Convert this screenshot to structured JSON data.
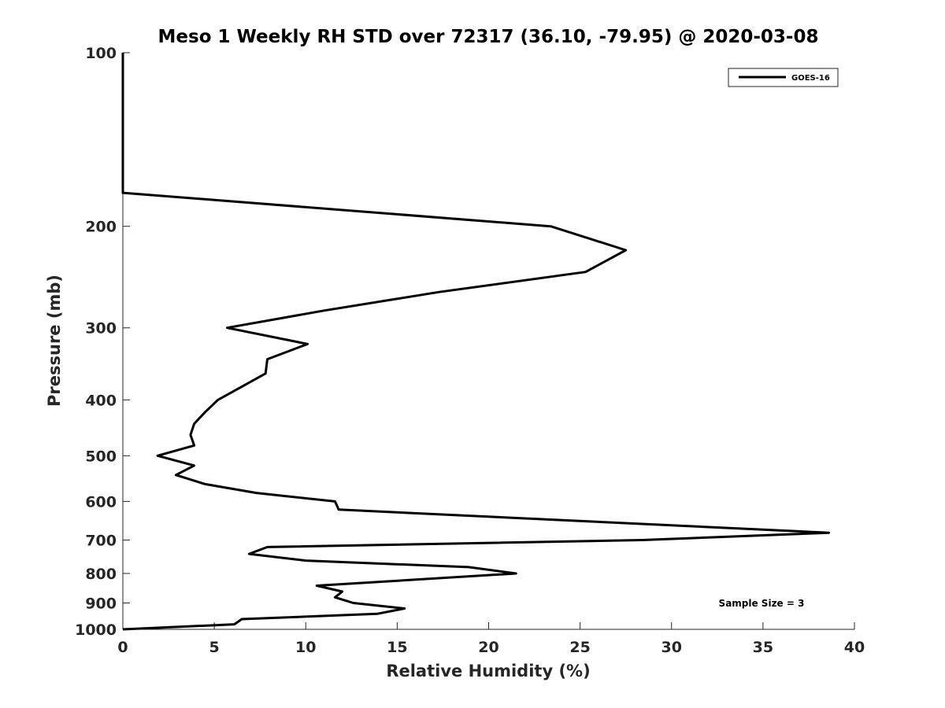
{
  "chart_data": {
    "type": "line",
    "title": "Meso 1 Weekly RH STD over 72317 (36.10, -79.95) @ 2020-03-08",
    "xlabel": "Relative Humidity (%)",
    "ylabel": "Pressure (mb)",
    "xlim": [
      0,
      40
    ],
    "ylim": [
      100,
      1000
    ],
    "y_scale": "log",
    "y_reversed": true,
    "x_ticks": [
      0,
      5,
      10,
      15,
      20,
      25,
      30,
      35,
      40
    ],
    "y_ticks": [
      100,
      200,
      300,
      400,
      500,
      600,
      700,
      800,
      900,
      1000
    ],
    "grid": false,
    "legend_position": "top-right",
    "annotation": "Sample Size = 3",
    "series": [
      {
        "name": "GOES-16",
        "color": "#000000",
        "points": [
          [
            0.0,
            100
          ],
          [
            0.0,
            125
          ],
          [
            0.0,
            150
          ],
          [
            0.0,
            175
          ],
          [
            23.4,
            200
          ],
          [
            27.5,
            220
          ],
          [
            25.3,
            240
          ],
          [
            17.3,
            260
          ],
          [
            11.0,
            280
          ],
          [
            5.7,
            300
          ],
          [
            10.1,
            320
          ],
          [
            7.9,
            340
          ],
          [
            7.8,
            360
          ],
          [
            5.2,
            400
          ],
          [
            4.5,
            420
          ],
          [
            3.9,
            440
          ],
          [
            3.7,
            460
          ],
          [
            3.9,
            480
          ],
          [
            1.9,
            500
          ],
          [
            3.9,
            520
          ],
          [
            2.9,
            540
          ],
          [
            4.5,
            560
          ],
          [
            7.3,
            580
          ],
          [
            11.6,
            600
          ],
          [
            11.8,
            620
          ],
          [
            38.6,
            680
          ],
          [
            28.4,
            700
          ],
          [
            7.9,
            720
          ],
          [
            6.9,
            740
          ],
          [
            10.0,
            760
          ],
          [
            18.9,
            780
          ],
          [
            21.5,
            800
          ],
          [
            10.6,
            840
          ],
          [
            12.0,
            860
          ],
          [
            11.6,
            880
          ],
          [
            12.6,
            900
          ],
          [
            15.4,
            920
          ],
          [
            13.9,
            940
          ],
          [
            6.5,
            960
          ],
          [
            6.1,
            980
          ],
          [
            0.0,
            1000
          ]
        ]
      }
    ]
  }
}
